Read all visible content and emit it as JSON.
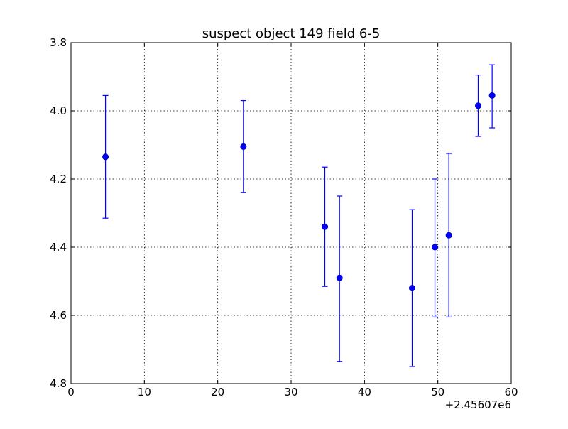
{
  "chart_data": {
    "type": "scatter",
    "title": "suspect object 149 field 6-5",
    "xlabel": "",
    "ylabel": "",
    "x_offset_label": "+2.45607e6",
    "xlim": [
      0,
      60
    ],
    "ylim": [
      3.8,
      4.8
    ],
    "y_inverted": true,
    "grid": true,
    "x_ticks": [
      0,
      10,
      20,
      30,
      40,
      50,
      60
    ],
    "y_ticks": [
      3.8,
      4.0,
      4.2,
      4.4,
      4.6,
      4.8
    ],
    "x_tick_labels": [
      "0",
      "10",
      "20",
      "30",
      "40",
      "50",
      "60"
    ],
    "y_tick_labels": [
      "3.8",
      "4.0",
      "4.2",
      "4.4",
      "4.6",
      "4.8"
    ],
    "marker_color": "#0000ff",
    "series": [
      {
        "points": [
          {
            "x": 4.7,
            "y": 4.135,
            "yerr_low": 3.955,
            "yerr_high": 4.315
          },
          {
            "x": 23.5,
            "y": 4.105,
            "yerr_low": 3.97,
            "yerr_high": 4.24
          },
          {
            "x": 34.6,
            "y": 4.34,
            "yerr_low": 4.165,
            "yerr_high": 4.515
          },
          {
            "x": 36.6,
            "y": 4.49,
            "yerr_low": 4.25,
            "yerr_high": 4.735
          },
          {
            "x": 46.5,
            "y": 4.52,
            "yerr_low": 4.29,
            "yerr_high": 4.75
          },
          {
            "x": 49.6,
            "y": 4.4,
            "yerr_low": 4.2,
            "yerr_high": 4.605
          },
          {
            "x": 51.5,
            "y": 4.365,
            "yerr_low": 4.125,
            "yerr_high": 4.605
          },
          {
            "x": 55.5,
            "y": 3.985,
            "yerr_low": 3.895,
            "yerr_high": 4.075
          },
          {
            "x": 57.4,
            "y": 3.955,
            "yerr_low": 3.865,
            "yerr_high": 4.05
          }
        ]
      }
    ]
  }
}
